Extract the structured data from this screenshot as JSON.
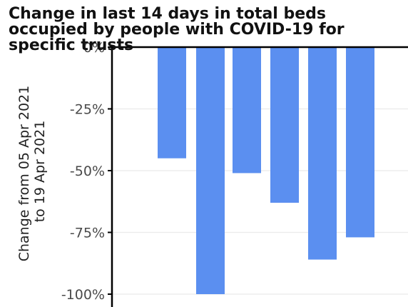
{
  "chart_data": {
    "type": "bar",
    "title_lines": [
      "Change in last 14 days in total beds",
      "occupied by people with COVID-19 for",
      "specific trusts"
    ],
    "ylabel_lines": [
      "Change from 05 Apr 2021",
      "to 19 Apr 2021"
    ],
    "yticks": [
      {
        "value": 0,
        "label": "0%"
      },
      {
        "value": -25,
        "label": "-25%"
      },
      {
        "value": -50,
        "label": "-50%"
      },
      {
        "value": -75,
        "label": "-75%"
      },
      {
        "value": -100,
        "label": "-100%"
      }
    ],
    "ylim": [
      -100,
      0
    ],
    "values": [
      -45,
      -100,
      -51,
      -63,
      -86,
      -77
    ],
    "bar_color": "#5b8ff0",
    "grid": true,
    "grid_color": "#ebebeb",
    "axis_color": "#000000"
  }
}
